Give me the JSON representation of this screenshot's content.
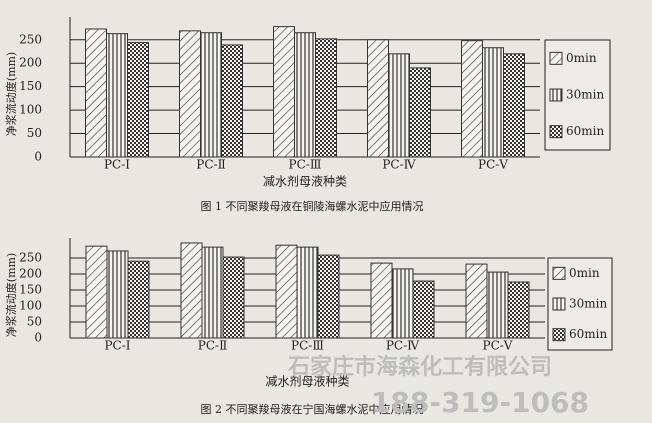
{
  "chart_data": [
    {
      "type": "bar",
      "caption": "图 1 不同聚羧母液在铜陵海螺水泥中应用情况",
      "x_label": "减水剂母液种类",
      "y_label": "净浆流动度(mm)",
      "categories": [
        "PC-Ⅰ",
        "PC-Ⅱ",
        "PC-Ⅲ",
        "PC-Ⅳ",
        "PC-Ⅴ"
      ],
      "series": [
        {
          "name": "0min",
          "color": "#333333",
          "values": [
            273,
            269,
            278,
            250,
            248
          ]
        },
        {
          "name": "30min",
          "color": "#333333",
          "values": [
            263,
            265,
            265,
            220,
            233
          ]
        },
        {
          "name": "60min",
          "color": "#333333",
          "values": [
            244,
            239,
            252,
            190,
            220
          ]
        }
      ],
      "ylim": [
        0,
        290
      ],
      "yticks": [
        0,
        50,
        100,
        150,
        200,
        250
      ],
      "grid": true
    },
    {
      "type": "bar",
      "caption": "图 2 不同聚羧母液在宁国海螺水泥中应用情况",
      "x_label": "减水剂母液种类",
      "y_label": "净浆流动度(mm)",
      "categories": [
        "PC-Ⅰ",
        "PC-Ⅱ",
        "PC-Ⅲ",
        "PC-Ⅳ",
        "PC-Ⅴ"
      ],
      "series": [
        {
          "name": "0min",
          "color": "#333333",
          "values": [
            287,
            297,
            290,
            234,
            231
          ]
        },
        {
          "name": "30min",
          "color": "#333333",
          "values": [
            272,
            284,
            284,
            216,
            206
          ]
        },
        {
          "name": "60min",
          "color": "#333333",
          "values": [
            240,
            253,
            259,
            178,
            175
          ]
        }
      ],
      "ylim": [
        0,
        300
      ],
      "yticks": [
        0,
        50,
        100,
        150,
        200,
        250
      ],
      "grid": true
    }
  ],
  "watermark": {
    "company": "石家庄市海森化工有限公司",
    "phone": "188-319-1068"
  }
}
